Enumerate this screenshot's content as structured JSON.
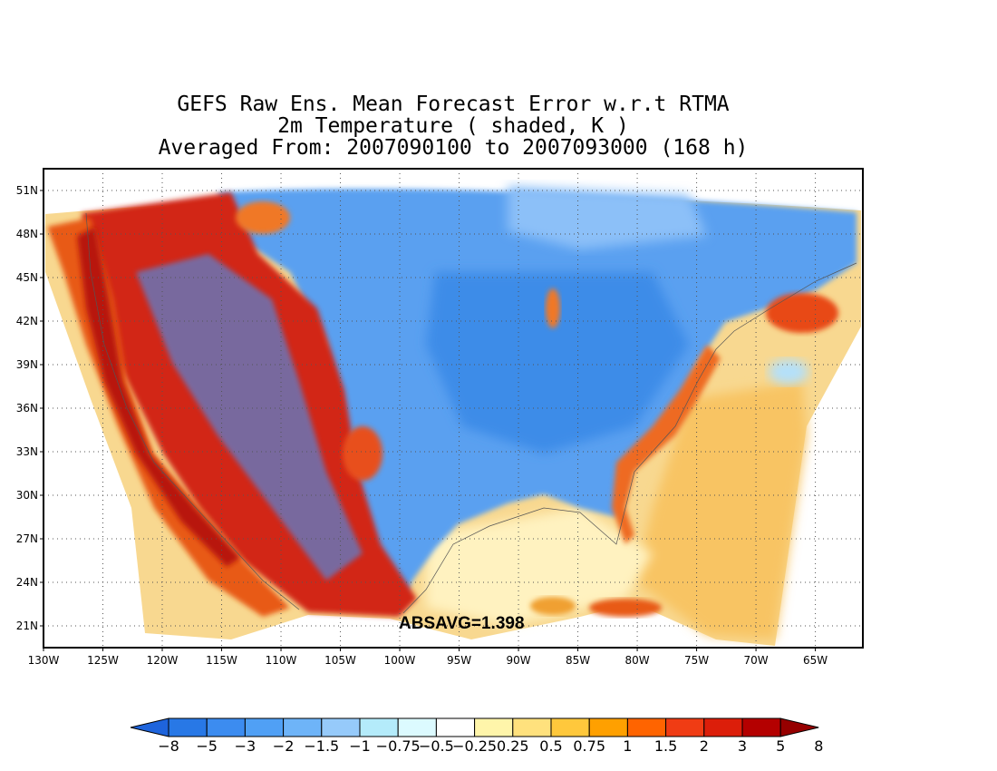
{
  "title_lines": [
    "GEFS Raw Ens. Mean Forecast Error w.r.t RTMA",
    "2m Temperature ( shaded, K )",
    "Averaged From: 2007090100 to 2007093000 (168 h)"
  ],
  "annotation": "ABSAVG=1.398",
  "map": {
    "lon_range": [
      -130,
      -61
    ],
    "lat_range": [
      19.5,
      52.5
    ],
    "lat_ticks": [
      {
        "value": 51,
        "label": "51N"
      },
      {
        "value": 48,
        "label": "48N"
      },
      {
        "value": 45,
        "label": "45N"
      },
      {
        "value": 42,
        "label": "42N"
      },
      {
        "value": 39,
        "label": "39N"
      },
      {
        "value": 36,
        "label": "36N"
      },
      {
        "value": 33,
        "label": "33N"
      },
      {
        "value": 30,
        "label": "30N"
      },
      {
        "value": 27,
        "label": "27N"
      },
      {
        "value": 24,
        "label": "24N"
      },
      {
        "value": 21,
        "label": "21N"
      }
    ],
    "lon_ticks": [
      {
        "value": -130,
        "label": "130W"
      },
      {
        "value": -125,
        "label": "125W"
      },
      {
        "value": -120,
        "label": "120W"
      },
      {
        "value": -115,
        "label": "115W"
      },
      {
        "value": -110,
        "label": "110W"
      },
      {
        "value": -105,
        "label": "105W"
      },
      {
        "value": -100,
        "label": "100W"
      },
      {
        "value": -95,
        "label": "95W"
      },
      {
        "value": -90,
        "label": "90W"
      },
      {
        "value": -85,
        "label": "85W"
      },
      {
        "value": -80,
        "label": "80W"
      },
      {
        "value": -75,
        "label": "75W"
      },
      {
        "value": -70,
        "label": "70W"
      },
      {
        "value": -65,
        "label": "65W"
      }
    ],
    "grid": "dotted",
    "regions": [
      {
        "name": "east-interior-cold-bias",
        "color": "#5aa0f0"
      },
      {
        "name": "west-terrain-warm-bias",
        "color": "#c81e14"
      },
      {
        "name": "pacific-coast-warm-bias",
        "color": "#e8641e"
      },
      {
        "name": "atlantic-ocean-mild-warm",
        "color": "#f8c864"
      },
      {
        "name": "gulf-mixed",
        "color": "#fff0b0"
      }
    ]
  },
  "colorbar": {
    "colors": [
      "#1e64dc",
      "#2878e6",
      "#3c8cf0",
      "#50a0f5",
      "#6eb4f8",
      "#96cafa",
      "#b4ebfa",
      "#dcfaff",
      "#ffffff",
      "#fff5aa",
      "#ffe17d",
      "#ffc83c",
      "#ffa000",
      "#ff6400",
      "#f03c14",
      "#dc1e0a",
      "#b40000",
      "#960000"
    ],
    "labels": [
      "−8",
      "−5",
      "−3",
      "−2",
      "−1.5",
      "−1",
      "−0.75",
      "−0.5",
      "−0.25",
      "0.25",
      "0.5",
      "0.75",
      "1",
      "1.5",
      "2",
      "3",
      "5",
      "8"
    ]
  }
}
